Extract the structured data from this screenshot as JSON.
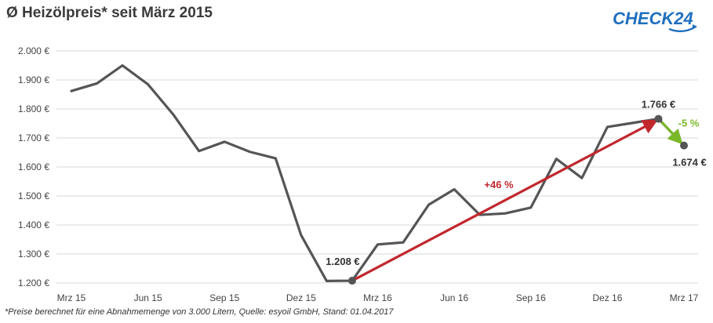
{
  "header": {
    "title": "Ø Heizölpreis* seit März 2015",
    "logo_text": "CHECK24"
  },
  "footnote": "*Preise berechnet für eine Abnahmemenge von 3.000 Litern, Quelle: esyoil GmbH, Stand: 01.04.2017",
  "colors": {
    "line": "#555555",
    "grid": "#d9d9d9",
    "increase_arrow": "#c1272d",
    "decrease_arrow": "#7ab829",
    "logo_blue": "#1f6fbf"
  },
  "chart_data": {
    "type": "line",
    "title": "Ø Heizölpreis* seit März 2015",
    "xlabel": "",
    "ylabel": "",
    "ylim": [
      1200,
      2000
    ],
    "yticks": [
      2000,
      1900,
      1800,
      1700,
      1600,
      1500,
      1400,
      1300,
      1200
    ],
    "ytick_labels": [
      "2.000 €",
      "1.900 €",
      "1.800 €",
      "1.700 €",
      "1.600 €",
      "1.500 €",
      "1.400 €",
      "1.300 €",
      "1.200 €"
    ],
    "x_tick_labels": [
      "Mrz 15",
      "Jun 15",
      "Sep 15",
      "Dez 15",
      "Mrz 16",
      "Jun 16",
      "Sep 16",
      "Dez 16",
      "Mrz 17"
    ],
    "grid": true,
    "series": [
      {
        "name": "",
        "x": [
          "Mrz 15",
          "",
          "",
          "Jun 15",
          "",
          "",
          "Sep 15",
          "",
          "",
          "Dez 15",
          "",
          "",
          "Mrz 16",
          "",
          "",
          "Jun 16",
          "",
          "",
          "Sep 16",
          "",
          "",
          "Dez 16",
          "",
          "",
          "Mrz 17"
        ],
        "values": [
          1862,
          1888,
          1950,
          1885,
          1780,
          1655,
          1687,
          1652,
          1630,
          1365,
          1207,
          1208,
          1333,
          1340,
          1470,
          1523,
          1435,
          1440,
          1460,
          1628,
          1562,
          1738,
          1752,
          1766,
          1674
        ]
      }
    ],
    "annotations": [
      {
        "label": "1.208 €",
        "value": 1208,
        "style": "dark"
      },
      {
        "label": "1.766 €",
        "value": 1766,
        "style": "dark"
      },
      {
        "label": "1.674 €",
        "value": 1674,
        "style": "dark"
      },
      {
        "label": "+46 %",
        "from": 1208,
        "to": 1766,
        "style": "red"
      },
      {
        "label": "-5 %",
        "from": 1766,
        "to": 1674,
        "style": "green"
      }
    ]
  }
}
